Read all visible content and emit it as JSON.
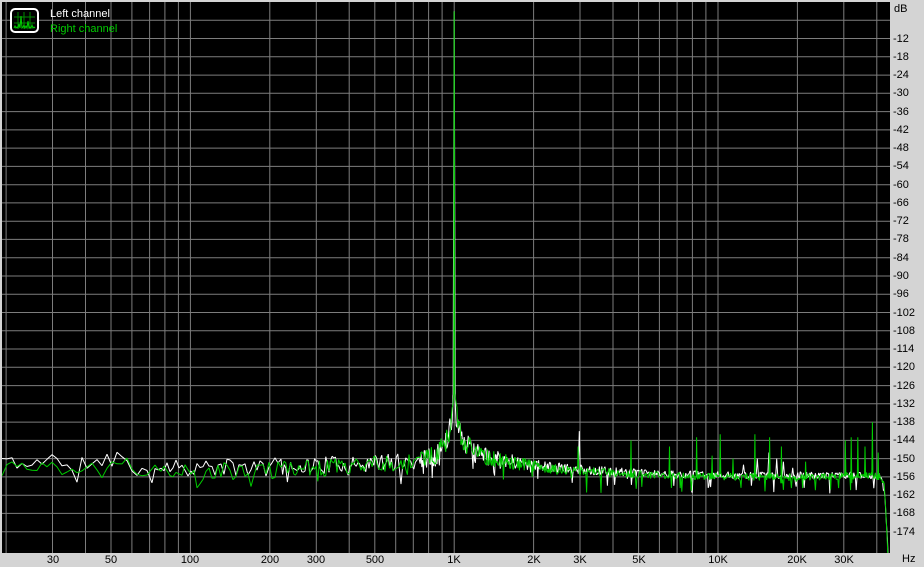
{
  "window": {
    "bg": "#D4D4D4"
  },
  "axis": {
    "y_unit": "dB",
    "x_unit": "Hz"
  },
  "legend": {
    "position": "top-left",
    "items": [
      {
        "label": "Left channel",
        "color": "#FFFFFF"
      },
      {
        "label": "Right channel",
        "color": "#00CC00"
      }
    ]
  },
  "chart_data": {
    "type": "line",
    "title": "",
    "xlabel": "Hz",
    "ylabel": "dB",
    "x_scale": "log",
    "grid": true,
    "legend_position": "top-left",
    "plot_bg": "#000000",
    "grid_color": "#7D7D7D",
    "label_color": "#000000",
    "x_range_hz": [
      19.3,
      44900
    ],
    "y_range_db": [
      -181,
      0
    ],
    "y_grid_db_step": 6,
    "y_tick_values": [
      -12,
      -18,
      -24,
      -30,
      -36,
      -42,
      -48,
      -54,
      -60,
      -66,
      -72,
      -78,
      -84,
      -90,
      -96,
      -102,
      -108,
      -114,
      -120,
      -126,
      -132,
      -138,
      -144,
      -150,
      -156,
      -162,
      -168,
      -174
    ],
    "y_tick_labels": [
      "-12",
      "-18",
      "-24",
      "-30",
      "-36",
      "-42",
      "-48",
      "-54",
      "-60",
      "-66",
      "-72",
      "-78",
      "-84",
      "-90",
      "-96",
      "-102",
      "-108",
      "-114",
      "-120",
      "-126",
      "-132",
      "-138",
      "-144",
      "-150",
      "-156",
      "-162",
      "-168",
      "-174"
    ],
    "x_gridline_freqs": [
      20,
      30,
      40,
      50,
      60,
      70,
      80,
      90,
      100,
      200,
      300,
      400,
      500,
      600,
      700,
      800,
      900,
      1000,
      2000,
      3000,
      4000,
      5000,
      6000,
      7000,
      8000,
      9000,
      10000,
      20000,
      30000,
      40000
    ],
    "x_tick_marks": [
      {
        "freq": 30,
        "label": "30"
      },
      {
        "freq": 50,
        "label": "50"
      },
      {
        "freq": 100,
        "label": "100"
      },
      {
        "freq": 200,
        "label": "200"
      },
      {
        "freq": 300,
        "label": "300"
      },
      {
        "freq": 500,
        "label": "500"
      },
      {
        "freq": 1000,
        "label": "1K"
      },
      {
        "freq": 2000,
        "label": "2K"
      },
      {
        "freq": 3000,
        "label": "3K"
      },
      {
        "freq": 5000,
        "label": "5K"
      },
      {
        "freq": 10000,
        "label": "10K"
      },
      {
        "freq": 20000,
        "label": "20K"
      },
      {
        "freq": 30000,
        "label": "30K"
      }
    ],
    "series": [
      {
        "name": "Left channel",
        "color": "#FFFFFF",
        "seed": 11,
        "spike_half_width": 1.1,
        "tone": {
          "freq": 1000,
          "db": -3.1
        },
        "envelope": [
          [
            19.3,
            -150
          ],
          [
            24,
            -152.5
          ],
          [
            30,
            -149
          ],
          [
            34,
            -153.5
          ],
          [
            42,
            -151
          ],
          [
            55,
            -149.5
          ],
          [
            65,
            -154
          ],
          [
            80,
            -152
          ],
          [
            100,
            -153
          ],
          [
            160,
            -153
          ],
          [
            240,
            -152.5
          ],
          [
            330,
            -152
          ],
          [
            480,
            -151.5
          ],
          [
            700,
            -151
          ],
          [
            850,
            -149
          ],
          [
            930,
            -145
          ],
          [
            965,
            -140
          ],
          [
            985,
            -134
          ],
          [
            1000,
            -127
          ],
          [
            1015,
            -134
          ],
          [
            1045,
            -141
          ],
          [
            1090,
            -144
          ],
          [
            1160,
            -147
          ],
          [
            1320,
            -149
          ],
          [
            1700,
            -151
          ],
          [
            2400,
            -153
          ],
          [
            3600,
            -154
          ],
          [
            6000,
            -155
          ],
          [
            12000,
            -155.5
          ],
          [
            24000,
            -155.5
          ],
          [
            38000,
            -155.5
          ],
          [
            41500,
            -156
          ],
          [
            42800,
            -161
          ],
          [
            43800,
            -175
          ],
          [
            44500,
            -188
          ]
        ],
        "noise_amp": [
          [
            19.3,
            1.8
          ],
          [
            45,
            2.6
          ],
          [
            150,
            3.0
          ],
          [
            400,
            2.8
          ],
          [
            800,
            3.2
          ],
          [
            1000,
            4.0
          ],
          [
            1300,
            2.8
          ],
          [
            2200,
            1.8
          ],
          [
            5000,
            1.3
          ],
          [
            44000,
            1.1
          ]
        ],
        "dip_chance": 0.07,
        "dip_max_db": 5.5,
        "spikes": [
          [
            1000,
            -3.1
          ],
          [
            2980,
            -141
          ],
          [
            12500,
            -152
          ],
          [
            14100,
            -150
          ],
          [
            15600,
            -148
          ],
          [
            16700,
            -150
          ],
          [
            17700,
            -151
          ],
          [
            19200,
            -153
          ]
        ]
      },
      {
        "name": "Right channel",
        "color": "#00CC00",
        "seed": 77,
        "spike_half_width": 0.55,
        "tone": {
          "freq": 1000,
          "db": -3.1
        },
        "envelope": [
          [
            19.3,
            -151.5
          ],
          [
            24,
            -153.5
          ],
          [
            30,
            -150
          ],
          [
            34,
            -154.5
          ],
          [
            42,
            -152
          ],
          [
            55,
            -150.5
          ],
          [
            65,
            -155
          ],
          [
            80,
            -153
          ],
          [
            100,
            -154
          ],
          [
            160,
            -154
          ],
          [
            240,
            -153.5
          ],
          [
            330,
            -153
          ],
          [
            480,
            -152
          ],
          [
            700,
            -151.5
          ],
          [
            850,
            -149
          ],
          [
            930,
            -145
          ],
          [
            965,
            -140
          ],
          [
            985,
            -134
          ],
          [
            1000,
            -126
          ],
          [
            1015,
            -134
          ],
          [
            1045,
            -141
          ],
          [
            1090,
            -144
          ],
          [
            1160,
            -147
          ],
          [
            1320,
            -149.5
          ],
          [
            1700,
            -151.5
          ],
          [
            2400,
            -153.5
          ],
          [
            3600,
            -154.5
          ],
          [
            6000,
            -155.5
          ],
          [
            12000,
            -156
          ],
          [
            24000,
            -156
          ],
          [
            38000,
            -155.5
          ],
          [
            41500,
            -156
          ],
          [
            42700,
            -159
          ],
          [
            43500,
            -171
          ],
          [
            44200,
            -185
          ],
          [
            44800,
            -192
          ]
        ],
        "noise_amp": [
          [
            19.3,
            1.8
          ],
          [
            45,
            2.6
          ],
          [
            150,
            3.0
          ],
          [
            400,
            2.8
          ],
          [
            800,
            3.2
          ],
          [
            1000,
            4.0
          ],
          [
            1300,
            2.8
          ],
          [
            2200,
            1.8
          ],
          [
            5000,
            1.3
          ],
          [
            44000,
            1.1
          ]
        ],
        "dip_chance": 0.07,
        "dip_max_db": 5.5,
        "spikes": [
          [
            1000,
            -3.1
          ],
          [
            2950,
            -146
          ],
          [
            4680,
            -144
          ],
          [
            6550,
            -146
          ],
          [
            8300,
            -143
          ],
          [
            9500,
            -149
          ],
          [
            10200,
            -142
          ],
          [
            11400,
            -150
          ],
          [
            13800,
            -142
          ],
          [
            15700,
            -143
          ],
          [
            17400,
            -146
          ],
          [
            21500,
            -151
          ],
          [
            30400,
            -144
          ],
          [
            32000,
            -143
          ],
          [
            33900,
            -143
          ],
          [
            36100,
            -146
          ],
          [
            38500,
            -138
          ],
          [
            40500,
            -148
          ]
        ]
      }
    ]
  }
}
